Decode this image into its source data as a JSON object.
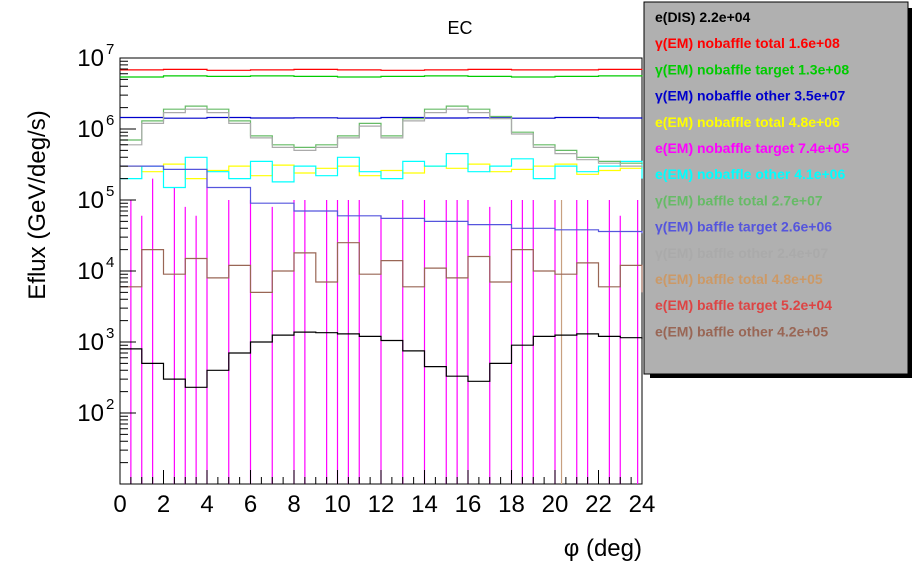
{
  "chart_data": {
    "type": "line",
    "title": "EC",
    "xlabel": "φ (deg)",
    "ylabel": "Eflux (GeV/deg/s)",
    "xlim": [
      0,
      24
    ],
    "ylim": [
      10,
      10000000
    ],
    "y_scale": "log",
    "x_ticks": [
      "0",
      "2",
      "4",
      "6",
      "8",
      "10",
      "12",
      "14",
      "16",
      "18",
      "20",
      "22",
      "24"
    ],
    "y_ticks": [
      {
        "value": 100,
        "base": "10",
        "exp": "2"
      },
      {
        "value": 1000,
        "base": "10",
        "exp": "3"
      },
      {
        "value": 10000,
        "base": "10",
        "exp": "4"
      },
      {
        "value": 100000,
        "base": "10",
        "exp": "5"
      },
      {
        "value": 1000000,
        "base": "10",
        "exp": "6"
      },
      {
        "value": 10000000,
        "base": "10",
        "exp": "7"
      }
    ],
    "legend_position": "top-right",
    "series": [
      {
        "name": "e(DIS)",
        "total": "2.2e+04",
        "color": "#000000",
        "x": [
          0,
          1,
          2,
          3,
          4,
          5,
          6,
          7,
          8,
          9,
          10,
          11,
          12,
          13,
          14,
          15,
          16,
          17,
          18,
          19,
          20,
          21,
          22,
          23,
          24
        ],
        "y": [
          800,
          500,
          300,
          230,
          400,
          700,
          1000,
          1250,
          1380,
          1350,
          1300,
          1200,
          1050,
          750,
          450,
          330,
          280,
          500,
          900,
          1200,
          1250,
          1300,
          1200,
          1150,
          1100
        ]
      },
      {
        "name": "γ(EM) nobaffle total",
        "total": "1.6e+08",
        "color": "#ff0000",
        "x": [
          0,
          2,
          4,
          6,
          8,
          10,
          12,
          14,
          16,
          18,
          20,
          22,
          24
        ],
        "y": [
          6800000,
          6900000,
          6700000,
          6800000,
          6900000,
          6800000,
          6700000,
          6800000,
          6900000,
          6800000,
          6800000,
          6900000,
          6800000
        ]
      },
      {
        "name": "γ(EM) nobaffle target",
        "total": "1.3e+08",
        "color": "#00cc00",
        "x": [
          0,
          2,
          4,
          6,
          8,
          10,
          12,
          14,
          16,
          18,
          20,
          22,
          24
        ],
        "y": [
          5400000,
          5600000,
          5500000,
          5600000,
          5500000,
          5400000,
          5500000,
          5600000,
          5500000,
          5400000,
          5500000,
          5600000,
          5500000
        ]
      },
      {
        "name": "γ(EM) nobaffle other",
        "total": "3.5e+07",
        "color": "#0000cc",
        "x": [
          0,
          2,
          4,
          6,
          8,
          10,
          12,
          14,
          16,
          18,
          20,
          22,
          24
        ],
        "y": [
          1450000,
          1420000,
          1450000,
          1430000,
          1440000,
          1420000,
          1450000,
          1430000,
          1440000,
          1420000,
          1450000,
          1430000,
          1440000
        ]
      },
      {
        "name": "e(EM) nobaffle total",
        "total": "4.8e+06",
        "color": "#ffff00",
        "x": [
          0,
          1,
          2,
          3,
          4,
          5,
          6,
          7,
          8,
          9,
          10,
          11,
          12,
          13,
          14,
          15,
          16,
          17,
          18,
          19,
          20,
          21,
          22,
          23,
          24
        ],
        "y": [
          300000,
          250000,
          320000,
          200000,
          260000,
          300000,
          220000,
          310000,
          240000,
          280000,
          300000,
          220000,
          260000,
          240000,
          300000,
          280000,
          320000,
          250000,
          270000,
          300000,
          320000,
          230000,
          260000,
          280000,
          300000
        ]
      },
      {
        "name": "e(EM) nobaffle target",
        "total": "7.4e+05",
        "color": "#ff00ff",
        "x": [],
        "y": []
      },
      {
        "name": "e(EM) nobaffle other",
        "total": "4.1e+06",
        "color": "#00ffff",
        "x": [
          0,
          1,
          2,
          3,
          4,
          5,
          6,
          7,
          8,
          9,
          10,
          11,
          12,
          13,
          14,
          15,
          16,
          17,
          18,
          19,
          20,
          21,
          22,
          23,
          24
        ],
        "y": [
          200000,
          300000,
          150000,
          400000,
          250000,
          200000,
          350000,
          180000,
          300000,
          220000,
          400000,
          250000,
          200000,
          350000,
          300000,
          450000,
          250000,
          300000,
          380000,
          200000,
          300000,
          250000,
          300000,
          350000,
          200000
        ]
      },
      {
        "name": "γ(EM) baffle total",
        "total": "2.7e+07",
        "color": "#66bb66",
        "x": [
          0,
          1,
          2,
          3,
          4,
          5,
          6,
          7,
          8,
          9,
          10,
          11,
          12,
          13,
          14,
          15,
          16,
          17,
          18,
          19,
          20,
          21,
          22,
          23,
          24
        ],
        "y": [
          700000,
          1300000,
          1900000,
          2100000,
          1900000,
          1300000,
          800000,
          600000,
          550000,
          600000,
          800000,
          1200000,
          800000,
          1400000,
          1900000,
          2100000,
          1900000,
          1500000,
          900000,
          600000,
          500000,
          400000,
          350000,
          330000,
          320000
        ]
      },
      {
        "name": "γ(EM) baffle target",
        "total": "2.6e+06",
        "color": "#5555dd",
        "x": [
          0,
          2,
          4,
          6,
          8,
          10,
          12,
          14,
          16,
          18,
          20,
          22,
          24
        ],
        "y": [
          300000,
          270000,
          150000,
          90000,
          70000,
          60000,
          55000,
          50000,
          45000,
          40000,
          38000,
          36000,
          34000
        ]
      },
      {
        "name": "γ(EM) baffle other",
        "total": "2.4e+07",
        "color": "#aaaaaa",
        "x": [
          0,
          1,
          2,
          3,
          4,
          5,
          6,
          7,
          8,
          9,
          10,
          11,
          12,
          13,
          14,
          15,
          16,
          17,
          18,
          19,
          20,
          21,
          22,
          23,
          24
        ],
        "y": [
          600000,
          1200000,
          1700000,
          1900000,
          1700000,
          1200000,
          750000,
          550000,
          500000,
          550000,
          750000,
          1100000,
          750000,
          1300000,
          1700000,
          1900000,
          1700000,
          1400000,
          850000,
          550000,
          450000,
          370000,
          330000,
          300000,
          290000
        ]
      },
      {
        "name": "e(EM) baffle total",
        "total": "4.8e+05",
        "color": "#cc9966",
        "x": [],
        "y": []
      },
      {
        "name": "e(EM) baffle target",
        "total": "5.2e+04",
        "color": "#dd4444",
        "x": [],
        "y": []
      },
      {
        "name": "e(EM) baffle other",
        "total": "4.2e+05",
        "color": "#996655",
        "x": [
          0,
          1,
          2,
          3,
          4,
          5,
          6,
          7,
          8,
          9,
          10,
          11,
          12,
          13,
          14,
          15,
          16,
          17,
          18,
          19,
          20,
          21,
          22,
          23,
          24
        ],
        "y": [
          6000,
          20000,
          9000,
          15000,
          8000,
          12000,
          5000,
          10000,
          18000,
          7000,
          25000,
          9000,
          14000,
          6000,
          11000,
          8000,
          16000,
          7000,
          20000,
          10000,
          9000,
          13000,
          6000,
          12000,
          5000
        ]
      }
    ],
    "spikes": {
      "color": "#ff00ff",
      "x": [
        0.5,
        1.0,
        1.5,
        2.5,
        3.0,
        3.5,
        4.0,
        5.0,
        6.0,
        7.0,
        8.0,
        8.5,
        9.5,
        10.0,
        10.5,
        11.0,
        12.0,
        13.0,
        14.0,
        15.0,
        15.5,
        16.0,
        17.0,
        18.0,
        18.5,
        19.0,
        20.0,
        21.0,
        21.5,
        22.5,
        23.0,
        23.8
      ],
      "y": [
        100000,
        60000,
        200000,
        150000,
        80000,
        60000,
        200000,
        100000,
        100000,
        80000,
        100000,
        100000,
        100000,
        100000,
        100000,
        100000,
        60000,
        100000,
        100000,
        100000,
        100000,
        100000,
        80000,
        100000,
        100000,
        100000,
        100000,
        100000,
        100000,
        100000,
        60000,
        100000
      ]
    },
    "brown_spike": {
      "x": 20.3,
      "y": 100000,
      "color": "#c8a080"
    }
  }
}
